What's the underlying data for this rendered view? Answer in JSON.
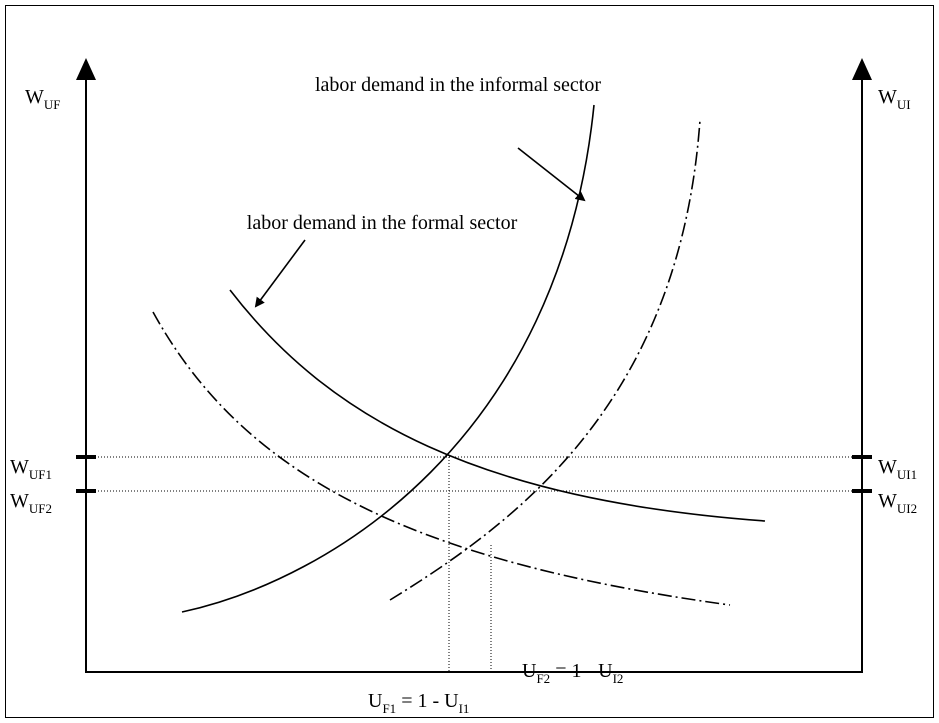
{
  "axes": {
    "left": [
      "W",
      "UF"
    ],
    "right": [
      "W",
      "UI"
    ]
  },
  "curve_labels": {
    "informal": "labor demand in the informal sector",
    "formal": "labor demand in the formal sector"
  },
  "wage_labels": {
    "uf1": [
      "W",
      "UF1"
    ],
    "uf2": [
      "W",
      "UF2"
    ],
    "ui1": [
      "W",
      "UI1"
    ],
    "ui2": [
      "W",
      "UI2"
    ]
  },
  "equilibria": {
    "second": [
      "U",
      "F2",
      " = 1 - U",
      "I2"
    ],
    "first": [
      "U",
      "F1",
      " = 1 - U",
      "I1"
    ]
  }
}
